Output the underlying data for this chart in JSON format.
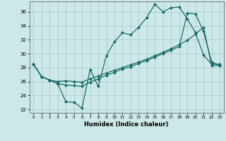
{
  "xlabel": "Humidex (Indice chaleur)",
  "background_color": "#cde8e8",
  "line_color": "#1a6b6b",
  "grid_color": "#aacccc",
  "xlim": [
    -0.5,
    23.5
  ],
  "ylim": [
    21.5,
    37.5
  ],
  "yticks": [
    22,
    24,
    26,
    28,
    30,
    32,
    34,
    36
  ],
  "xticks": [
    0,
    1,
    2,
    3,
    4,
    5,
    6,
    7,
    8,
    9,
    10,
    11,
    12,
    13,
    14,
    15,
    16,
    17,
    18,
    19,
    20,
    21,
    22,
    23
  ],
  "line1_x": [
    0,
    1,
    2,
    3,
    4,
    5,
    6,
    7,
    8,
    9,
    10,
    11,
    12,
    13,
    14,
    15,
    16,
    17,
    18,
    19,
    20,
    21,
    22,
    23
  ],
  "line1_y": [
    28.5,
    26.7,
    26.2,
    25.7,
    23.1,
    23.0,
    22.2,
    27.7,
    25.3,
    29.7,
    31.7,
    33.0,
    32.7,
    33.8,
    35.2,
    37.1,
    36.0,
    36.6,
    36.7,
    35.0,
    33.0,
    29.8,
    28.5,
    28.5
  ],
  "line2_x": [
    0,
    1,
    2,
    3,
    4,
    5,
    6,
    7,
    8,
    9,
    10,
    11,
    12,
    13,
    14,
    15,
    16,
    17,
    18,
    19,
    20,
    21,
    22,
    23
  ],
  "line2_y": [
    28.5,
    26.7,
    26.2,
    25.7,
    25.5,
    25.4,
    25.3,
    25.9,
    26.4,
    26.9,
    27.3,
    27.8,
    28.1,
    28.6,
    29.0,
    29.5,
    30.0,
    30.5,
    31.0,
    35.8,
    35.7,
    33.2,
    28.8,
    28.3
  ],
  "line3_x": [
    0,
    1,
    2,
    3,
    4,
    5,
    6,
    7,
    8,
    9,
    10,
    11,
    12,
    13,
    14,
    15,
    16,
    17,
    18,
    19,
    20,
    21,
    22,
    23
  ],
  "line3_y": [
    28.5,
    26.7,
    26.2,
    26.0,
    26.1,
    26.0,
    25.9,
    26.4,
    26.8,
    27.2,
    27.6,
    28.0,
    28.4,
    28.8,
    29.2,
    29.7,
    30.2,
    30.7,
    31.3,
    31.9,
    32.8,
    33.8,
    28.3,
    28.3
  ]
}
